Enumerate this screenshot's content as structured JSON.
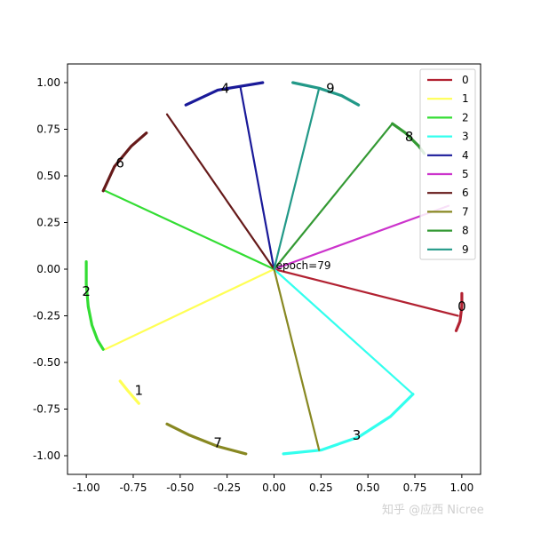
{
  "chart_data": {
    "type": "line",
    "title": "",
    "xlabel": "",
    "ylabel": "",
    "xlim": [
      -1.1,
      1.1
    ],
    "ylim": [
      -1.1,
      1.1
    ],
    "grid": false,
    "legend_position": "top-right",
    "x_ticks": [
      "-1.00",
      "-0.75",
      "-0.50",
      "-0.25",
      "0.00",
      "0.25",
      "0.50",
      "0.75",
      "1.00"
    ],
    "y_ticks": [
      "1.00",
      "0.75",
      "0.50",
      "0.25",
      "0.00",
      "-0.25",
      "-0.50",
      "-0.75",
      "-1.00"
    ],
    "annotation": {
      "text": "epoch=79",
      "x": 0.01,
      "y": 0.01
    },
    "series": [
      {
        "name": "0",
        "color": "#b22232",
        "vector": [
          0.98,
          -0.25
        ],
        "arc": [
          [
            0.97,
            -0.33
          ],
          [
            0.99,
            -0.28
          ],
          [
            1.0,
            -0.2
          ],
          [
            1.0,
            -0.13
          ]
        ],
        "label_at": [
          1.0,
          -0.2
        ]
      },
      {
        "name": "1",
        "color": "#ffff55",
        "vector": [
          -0.9,
          -0.43
        ],
        "arc": [
          [
            -0.82,
            -0.6
          ],
          [
            -0.78,
            -0.65
          ],
          [
            -0.72,
            -0.72
          ]
        ],
        "label_at": [
          -0.72,
          -0.65
        ]
      },
      {
        "name": "2",
        "color": "#33dd33",
        "vector": [
          -0.9,
          0.42
        ],
        "arc": [
          [
            -1.0,
            0.04
          ],
          [
            -1.0,
            -0.08
          ],
          [
            -0.99,
            -0.2
          ],
          [
            -0.97,
            -0.3
          ],
          [
            -0.94,
            -0.38
          ],
          [
            -0.91,
            -0.43
          ]
        ],
        "label_at": [
          -1.0,
          -0.12
        ]
      },
      {
        "name": "3",
        "color": "#33ffee",
        "vector": [
          0.74,
          -0.67
        ],
        "arc": [
          [
            0.05,
            -0.99
          ],
          [
            0.25,
            -0.97
          ],
          [
            0.45,
            -0.9
          ],
          [
            0.62,
            -0.79
          ],
          [
            0.74,
            -0.67
          ]
        ],
        "label_at": [
          0.44,
          -0.89
        ]
      },
      {
        "name": "4",
        "color": "#1a1a99",
        "vector": [
          -0.18,
          0.98
        ],
        "arc": [
          [
            -0.47,
            0.88
          ],
          [
            -0.3,
            0.96
          ],
          [
            -0.18,
            0.98
          ],
          [
            -0.06,
            1.0
          ]
        ],
        "label_at": [
          -0.26,
          0.97
        ]
      },
      {
        "name": "5",
        "color": "#cc33cc",
        "vector": [
          0.93,
          0.34
        ],
        "arc": [],
        "label_at": null
      },
      {
        "name": "6",
        "color": "#661a1a",
        "vector": [
          -0.57,
          0.83
        ],
        "arc": [
          [
            -0.91,
            0.42
          ],
          [
            -0.85,
            0.55
          ],
          [
            -0.76,
            0.66
          ],
          [
            -0.68,
            0.73
          ]
        ],
        "label_at": [
          -0.82,
          0.57
        ]
      },
      {
        "name": "7",
        "color": "#888822",
        "vector": [
          0.24,
          -0.97
        ],
        "arc": [
          [
            -0.57,
            -0.83
          ],
          [
            -0.45,
            -0.89
          ],
          [
            -0.3,
            -0.95
          ],
          [
            -0.15,
            -0.99
          ]
        ],
        "label_at": [
          -0.3,
          -0.93
        ]
      },
      {
        "name": "8",
        "color": "#339933",
        "vector": [
          0.63,
          0.78
        ],
        "arc": [
          [
            0.63,
            0.78
          ],
          [
            0.7,
            0.73
          ],
          [
            0.77,
            0.66
          ],
          [
            0.8,
            0.62
          ]
        ],
        "label_at": [
          0.72,
          0.71
        ]
      },
      {
        "name": "9",
        "color": "#229988",
        "vector": [
          0.24,
          0.97
        ],
        "arc": [
          [
            0.1,
            1.0
          ],
          [
            0.24,
            0.97
          ],
          [
            0.36,
            0.93
          ],
          [
            0.45,
            0.88
          ]
        ],
        "label_at": [
          0.3,
          0.97
        ]
      }
    ]
  },
  "watermark": "知乎 @应西 Nicree"
}
